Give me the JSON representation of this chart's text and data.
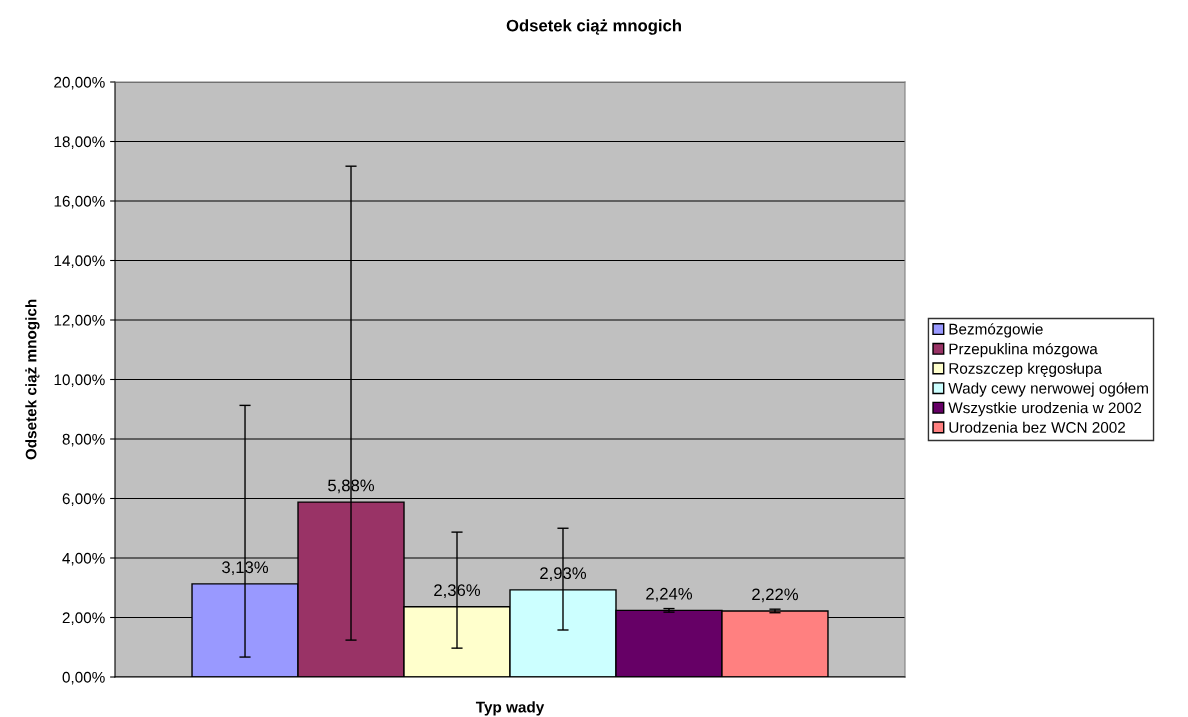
{
  "chart_data": {
    "type": "bar",
    "title": "Odsetek ciąż mnogich",
    "xlabel": "Typ wady",
    "ylabel": "Odsetek ciąż mnogich",
    "categories": [
      null
    ],
    "series": [
      {
        "name": "Bezmózgowie",
        "color": "#9999ff",
        "values": [
          3.13
        ],
        "errors": [
          [
            0.67,
            9.13
          ]
        ],
        "value_labels": [
          "3,13%"
        ]
      },
      {
        "name": "Przepuklina mózgowa",
        "color": "#993366",
        "values": [
          5.88
        ],
        "errors": [
          [
            1.24,
            17.17
          ]
        ],
        "value_labels": [
          "5,88%"
        ]
      },
      {
        "name": "Rozszczep kręgosłupa",
        "color": "#ffffcc",
        "values": [
          2.36
        ],
        "errors": [
          [
            0.97,
            4.87
          ]
        ],
        "value_labels": [
          "2,36%"
        ]
      },
      {
        "name": "Wady cewy nerwowej ogółem",
        "color": "#ccffff",
        "values": [
          2.93
        ],
        "errors": [
          [
            1.58,
            5.0
          ]
        ],
        "value_labels": [
          "2,93%"
        ]
      },
      {
        "name": "Wszystkie urodzenia w 2002",
        "color": "#660066",
        "values": [
          2.24
        ],
        "errors": [
          [
            2.18,
            2.3
          ]
        ],
        "value_labels": [
          "2,24%"
        ]
      },
      {
        "name": "Urodzenia bez WCN 2002",
        "color": "#ff8080",
        "values": [
          2.22
        ],
        "errors": [
          [
            2.16,
            2.28
          ]
        ],
        "value_labels": [
          "2,22%"
        ]
      }
    ],
    "ylim": [
      0,
      20
    ],
    "yticks": [
      {
        "value": 0,
        "label": "0,00%"
      },
      {
        "value": 2,
        "label": "2,00%"
      },
      {
        "value": 4,
        "label": "4,00%"
      },
      {
        "value": 6,
        "label": "6,00%"
      },
      {
        "value": 8,
        "label": "8,00%"
      },
      {
        "value": 10,
        "label": "10,00%"
      },
      {
        "value": 12,
        "label": "12,00%"
      },
      {
        "value": 14,
        "label": "14,00%"
      },
      {
        "value": 16,
        "label": "16,00%"
      },
      {
        "value": 18,
        "label": "18,00%"
      },
      {
        "value": 20,
        "label": "20,00%"
      }
    ],
    "grid": "y",
    "legend": "right"
  }
}
